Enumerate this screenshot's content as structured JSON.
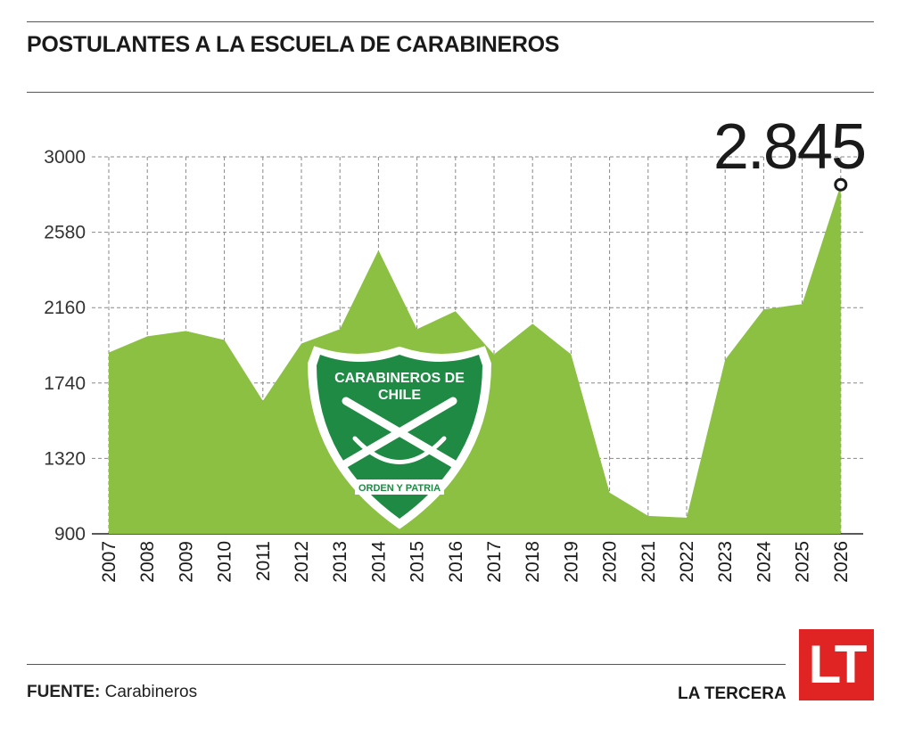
{
  "title": "POSTULANTES A LA ESCUELA DE CARABINEROS",
  "footer": {
    "source_label": "FUENTE:",
    "source_value": "Carabineros",
    "brand": "LA TERCERA",
    "logo_text": "LT"
  },
  "emblem": {
    "line1": "CARABINEROS DE",
    "line2": "CHILE",
    "motto": "ORDEN Y PATRIA"
  },
  "chart_data": {
    "type": "area",
    "title": "POSTULANTES A LA ESCUELA DE CARABINEROS",
    "xlabel": "",
    "ylabel": "",
    "x": [
      "2007",
      "2008",
      "2009",
      "2010",
      "2011",
      "2012",
      "2013",
      "2014",
      "2015",
      "2016",
      "2017",
      "2018",
      "2019",
      "2020",
      "2021",
      "2022",
      "2023",
      "2024",
      "2025",
      "2026"
    ],
    "values": [
      1910,
      2000,
      2030,
      1980,
      1640,
      1960,
      2040,
      2480,
      2040,
      2140,
      1900,
      2070,
      1900,
      1130,
      1000,
      990,
      1870,
      2150,
      2180,
      2845
    ],
    "yticks": [
      900,
      1320,
      1740,
      2160,
      2580,
      3000
    ],
    "ylim": [
      900,
      3000
    ],
    "color": "#8bc043",
    "grid": true,
    "annotation": {
      "x": "2026",
      "label": "2.845"
    }
  }
}
